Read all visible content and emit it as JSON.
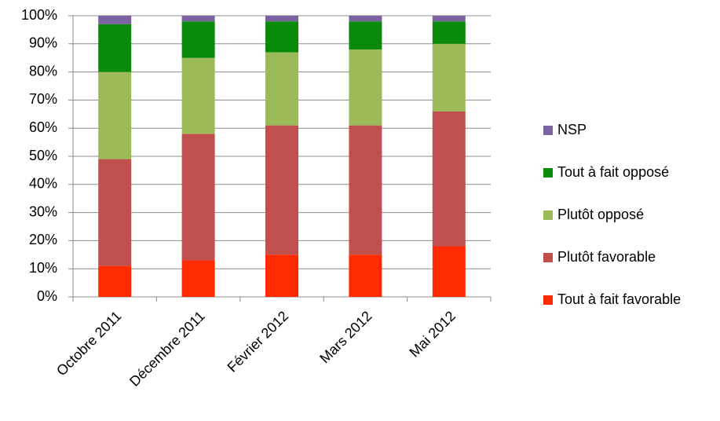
{
  "chart_data": {
    "type": "stacked-bar",
    "categories": [
      "Octobre 2011",
      "Décembre 2011",
      "Février 2012",
      "Mars 2012",
      "Mai 2012"
    ],
    "series": [
      {
        "name": "Tout à fait favorable",
        "color": "#ff2a00",
        "values": [
          11,
          13,
          15,
          15,
          18
        ]
      },
      {
        "name": "Plutôt favorable",
        "color": "#c0504d",
        "values": [
          38,
          45,
          46,
          46,
          48
        ]
      },
      {
        "name": "Plutôt opposé",
        "color": "#9bbb59",
        "values": [
          31,
          27,
          26,
          27,
          24
        ]
      },
      {
        "name": "Tout à fait opposé",
        "color": "#0a8a0a",
        "values": [
          17,
          13,
          11,
          10,
          8
        ]
      },
      {
        "name": "NSP",
        "color": "#7b62a0",
        "values": [
          3,
          2,
          2,
          2,
          2
        ]
      }
    ],
    "ylim": [
      0,
      100
    ],
    "yticks": [
      {
        "value": 0,
        "label": "0%"
      },
      {
        "value": 10,
        "label": "10%"
      },
      {
        "value": 20,
        "label": "20%"
      },
      {
        "value": 30,
        "label": "30%"
      },
      {
        "value": 40,
        "label": "40%"
      },
      {
        "value": 50,
        "label": "50%"
      },
      {
        "value": 60,
        "label": "60%"
      },
      {
        "value": 70,
        "label": "70%"
      },
      {
        "value": 80,
        "label": "80%"
      },
      {
        "value": 90,
        "label": "90%"
      },
      {
        "value": 100,
        "label": "100%"
      }
    ],
    "grid": true,
    "legend": "right"
  }
}
